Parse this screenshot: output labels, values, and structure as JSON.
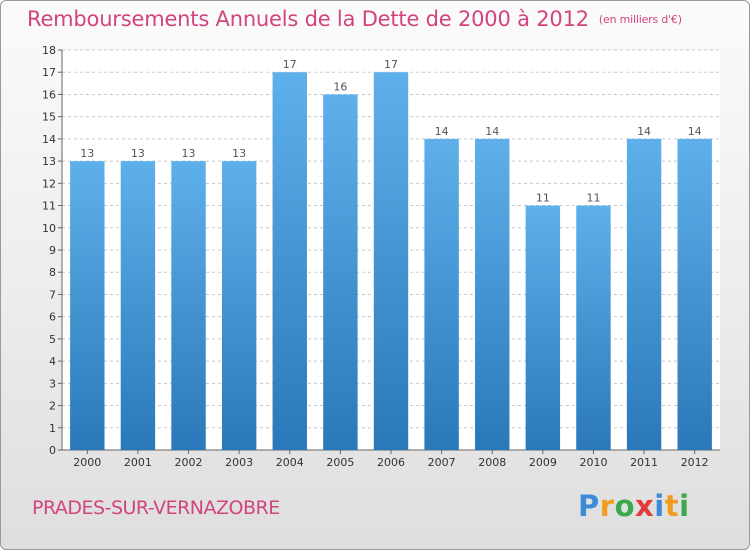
{
  "header": {
    "title": "Remboursements Annuels de la Dette de 2000 à 2012",
    "subtitle": "(en milliers d'€)"
  },
  "footer": {
    "place": "PRADES-SUR-VERNAZOBRE",
    "logo_letters": [
      "P",
      "r",
      "o",
      "x",
      "i",
      "t",
      "i"
    ],
    "logo_colors": [
      "#3d8ad6",
      "#f09d1d",
      "#3aa84b",
      "#e23b3b",
      "#3d8ad6",
      "#f09d1d",
      "#3aa84b"
    ]
  },
  "chart_data": {
    "type": "bar",
    "title": "Remboursements Annuels de la Dette de 2000 à 2012",
    "xlabel": "",
    "ylabel": "",
    "ylim": [
      0,
      18
    ],
    "yticks": [
      0,
      1,
      2,
      3,
      4,
      5,
      6,
      7,
      8,
      9,
      10,
      11,
      12,
      13,
      14,
      15,
      16,
      17,
      18
    ],
    "grid": true,
    "categories": [
      "2000",
      "2001",
      "2002",
      "2003",
      "2004",
      "2005",
      "2006",
      "2007",
      "2008",
      "2009",
      "2010",
      "2011",
      "2012"
    ],
    "values": [
      13,
      13,
      13,
      13,
      17,
      16,
      17,
      14,
      14,
      11,
      11,
      14,
      14
    ],
    "bar_color_top": "#5eb0ea",
    "bar_color_bottom": "#2a78b9",
    "label_color": "#555555"
  }
}
